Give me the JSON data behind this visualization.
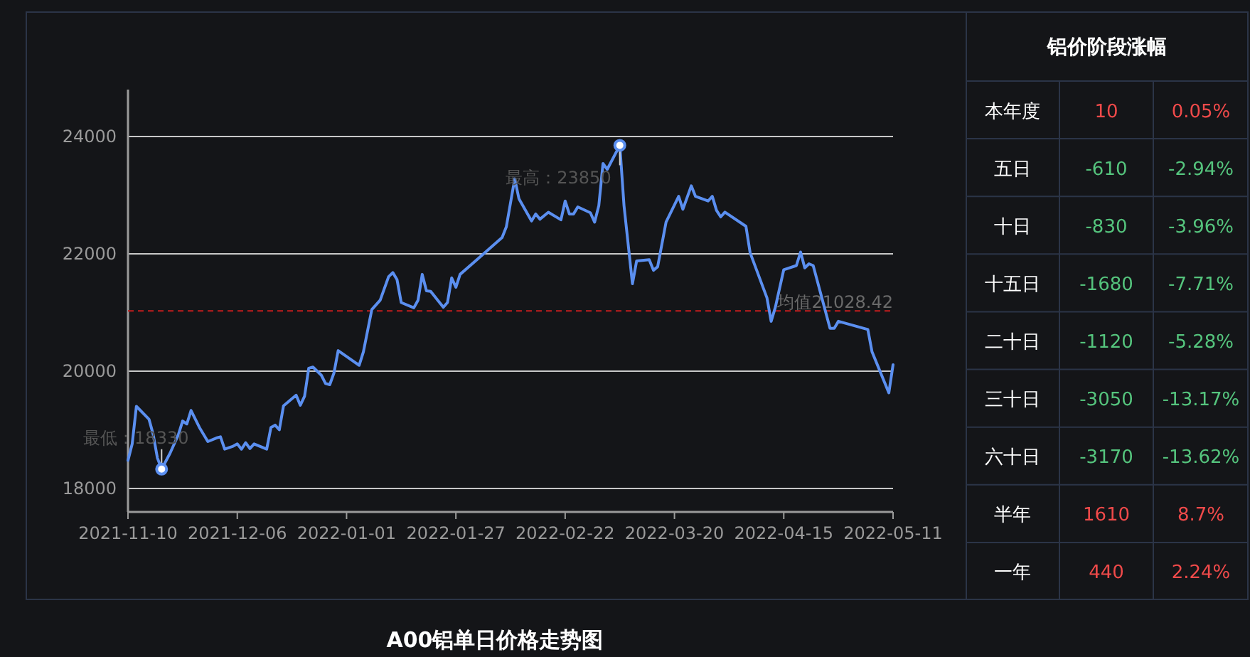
{
  "chart_data": [
    {
      "type": "line",
      "title": "A00铝单日价格走势图",
      "x": [
        "2021-11-10",
        "2021-11-11",
        "2021-11-12",
        "2021-11-15",
        "2021-11-16",
        "2021-11-17",
        "2021-11-18",
        "2021-11-20",
        "2021-11-22",
        "2021-11-23",
        "2021-11-24",
        "2021-11-25",
        "2021-11-27",
        "2021-11-29",
        "2021-12-01",
        "2021-12-02",
        "2021-12-03",
        "2021-12-05",
        "2021-12-06",
        "2021-12-07",
        "2021-12-08",
        "2021-12-09",
        "2021-12-10",
        "2021-12-13",
        "2021-12-14",
        "2021-12-15",
        "2021-12-16",
        "2021-12-17",
        "2021-12-20",
        "2021-12-21",
        "2021-12-22",
        "2021-12-23",
        "2021-12-24",
        "2021-12-26",
        "2021-12-27",
        "2021-12-28",
        "2021-12-29",
        "2021-12-30",
        "2022-01-04",
        "2022-01-05",
        "2022-01-07",
        "2022-01-09",
        "2022-01-11",
        "2022-01-12",
        "2022-01-13",
        "2022-01-14",
        "2022-01-17",
        "2022-01-18",
        "2022-01-19",
        "2022-01-20",
        "2022-01-21",
        "2022-01-24",
        "2022-01-25",
        "2022-01-26",
        "2022-01-27",
        "2022-01-28",
        "2022-02-01",
        "2022-02-07",
        "2022-02-08",
        "2022-02-10",
        "2022-02-11",
        "2022-02-14",
        "2022-02-15",
        "2022-02-16",
        "2022-02-18",
        "2022-02-21",
        "2022-02-22",
        "2022-02-23",
        "2022-02-24",
        "2022-02-25",
        "2022-02-28",
        "2022-03-01",
        "2022-03-02",
        "2022-03-03",
        "2022-03-04",
        "2022-03-07",
        "2022-03-08",
        "2022-03-10",
        "2022-03-11",
        "2022-03-14",
        "2022-03-15",
        "2022-03-16",
        "2022-03-18",
        "2022-03-21",
        "2022-03-22",
        "2022-03-24",
        "2022-03-25",
        "2022-03-28",
        "2022-03-29",
        "2022-03-30",
        "2022-03-31",
        "2022-04-01",
        "2022-04-06",
        "2022-04-07",
        "2022-04-11",
        "2022-04-12",
        "2022-04-13",
        "2022-04-15",
        "2022-04-18",
        "2022-04-19",
        "2022-04-20",
        "2022-04-21",
        "2022-04-22",
        "2022-04-26",
        "2022-04-27",
        "2022-04-28",
        "2022-05-05",
        "2022-05-06",
        "2022-05-10",
        "2022-05-11"
      ],
      "series": [
        {
          "color": "#5b8ff0",
          "values": [
            18480,
            18760,
            19400,
            19180,
            18920,
            18520,
            18330,
            18600,
            18920,
            19150,
            19100,
            19330,
            19040,
            18800,
            18860,
            18880,
            18670,
            18720,
            18760,
            18670,
            18780,
            18680,
            18760,
            18670,
            19040,
            19080,
            19000,
            19410,
            19590,
            19420,
            19570,
            20050,
            20070,
            19930,
            19790,
            19770,
            19970,
            20350,
            20100,
            20330,
            21050,
            21210,
            21610,
            21680,
            21560,
            21170,
            21080,
            21210,
            21650,
            21370,
            21360,
            21090,
            21170,
            21590,
            21430,
            21650,
            21900,
            22280,
            22460,
            23280,
            22940,
            22560,
            22680,
            22590,
            22710,
            22580,
            22900,
            22680,
            22680,
            22800,
            22700,
            22540,
            22820,
            23540,
            23440,
            23850,
            22820,
            21490,
            21880,
            21900,
            21720,
            21780,
            22540,
            22980,
            22760,
            23160,
            22980,
            22900,
            22980,
            22740,
            22630,
            22710,
            22470,
            22020,
            21250,
            20850,
            21090,
            21730,
            21800,
            22030,
            21760,
            21830,
            21800,
            20730,
            20730,
            20850,
            20710,
            20330,
            19630,
            20110
          ]
        }
      ],
      "xlim": [
        "2021-11-10",
        "2022-05-11"
      ],
      "xticks": [
        "2021-11-10",
        "2021-12-06",
        "2022-01-01",
        "2022-01-27",
        "2022-02-22",
        "2022-03-20",
        "2022-04-15",
        "2022-05-11"
      ],
      "ylim": [
        17600,
        24800
      ],
      "yticks": [
        18000,
        20000,
        22000,
        24000
      ],
      "grid": "y",
      "ref_lines": [
        {
          "axis": "y",
          "value": 21028.42,
          "label": "均值21028.42",
          "color": "#c41d1d",
          "line_style": "dashed"
        }
      ],
      "annotations": [
        {
          "text": "最低：18330",
          "x": "2021-11-18",
          "y": 18330
        },
        {
          "text": "最高：23850",
          "x": "2022-03-07",
          "y": 23850
        }
      ]
    },
    {
      "type": "other",
      "title": "铝价阶段涨幅",
      "categories": [
        "本年度",
        "五日",
        "十日",
        "十五日",
        "二十日",
        "三十日",
        "六十日",
        "半年",
        "一年"
      ],
      "series": [
        {
          "values": [
            10,
            -610,
            -830,
            -1680,
            -1120,
            -3050,
            -3170,
            1610,
            440
          ],
          "value_labels": [
            "10",
            "-610",
            "-830",
            "-1680",
            "-1120",
            "-3050",
            "-3170",
            "1610",
            "440"
          ],
          "colors": [
            "#f04a4a",
            "#55c47d",
            "#55c47d",
            "#55c47d",
            "#55c47d",
            "#55c47d",
            "#55c47d",
            "#f04a4a",
            "#f04a4a"
          ]
        },
        {
          "values": [
            0.05,
            -2.94,
            -3.96,
            -7.71,
            -5.28,
            -13.17,
            -13.62,
            8.7,
            2.24
          ],
          "value_labels": [
            "0.05%",
            "-2.94%",
            "-3.96%",
            "-7.71%",
            "-5.28%",
            "-13.17%",
            "-13.62%",
            "8.7%",
            "2.24%"
          ],
          "colors": [
            "#f04a4a",
            "#55c47d",
            "#55c47d",
            "#55c47d",
            "#55c47d",
            "#55c47d",
            "#55c47d",
            "#f04a4a",
            "#f04a4a"
          ]
        }
      ]
    }
  ]
}
